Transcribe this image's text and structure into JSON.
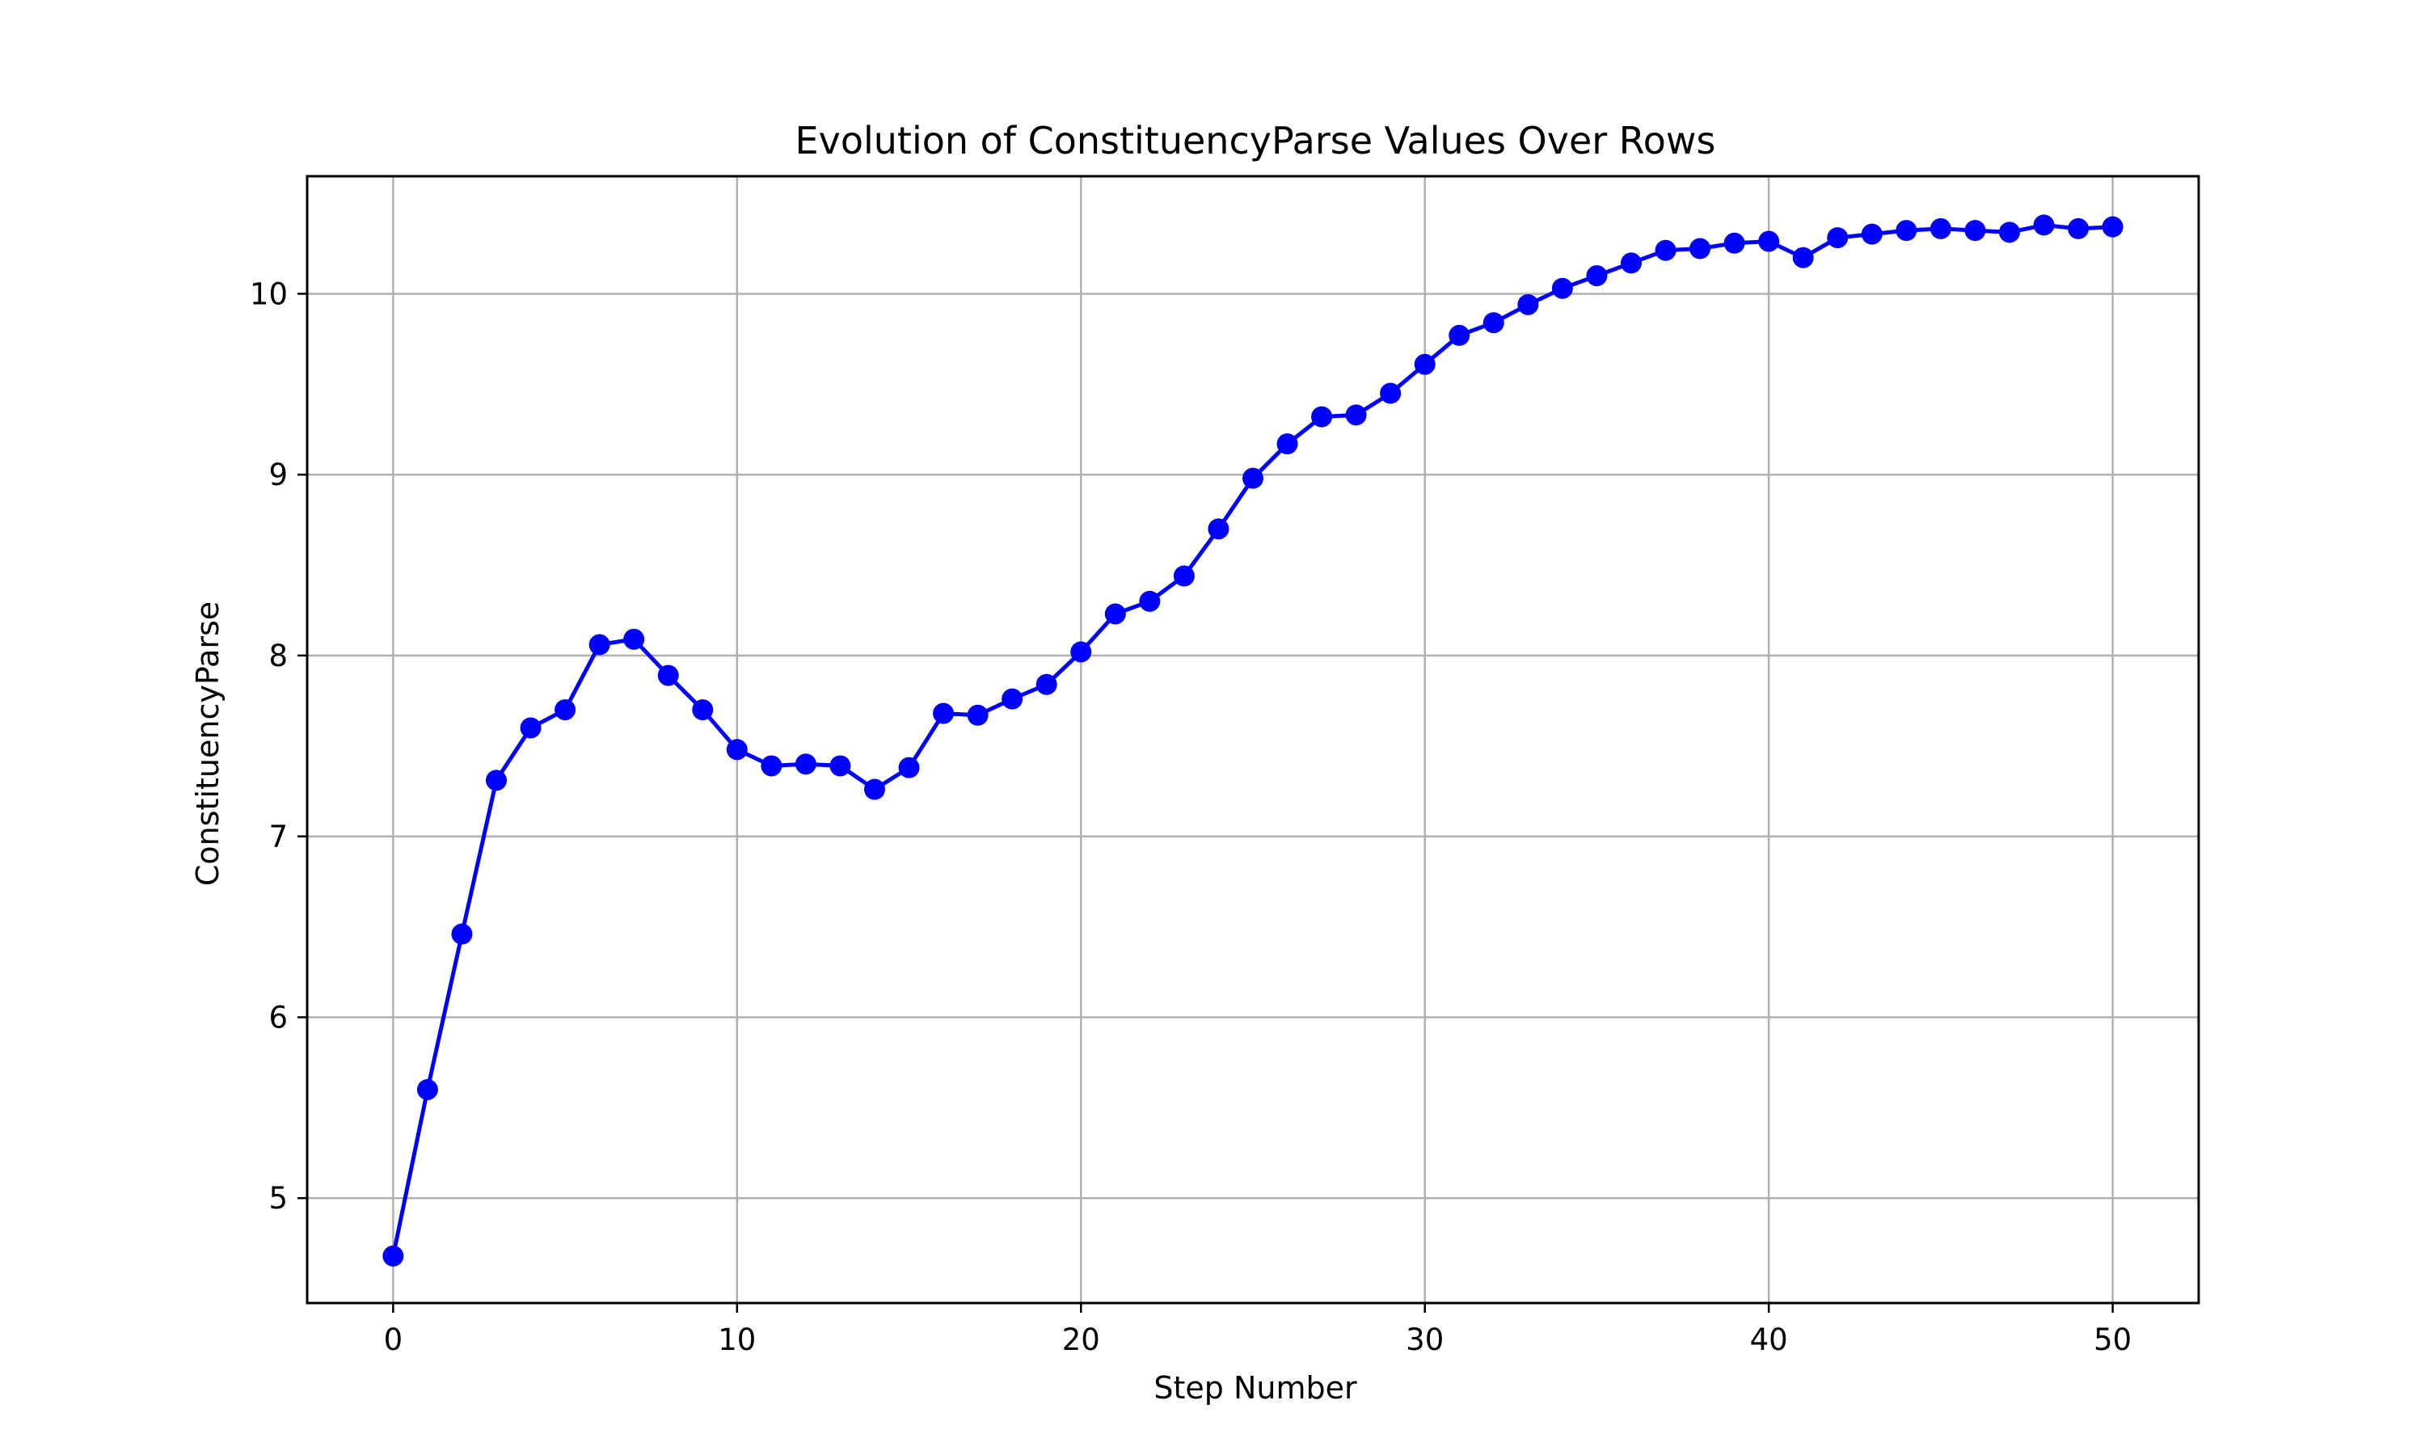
{
  "chart_data": {
    "type": "line",
    "title": "Evolution of ConstituencyParse Values Over Rows",
    "xlabel": "Step Number",
    "ylabel": "ConstituencyParse",
    "xlim": [
      -2.5,
      52.5
    ],
    "ylim": [
      4.42,
      10.65
    ],
    "xticks": [
      0,
      10,
      20,
      30,
      40,
      50
    ],
    "yticks": [
      5,
      6,
      7,
      8,
      9,
      10
    ],
    "grid": true,
    "line_color": "#0000ff",
    "marker": "circle",
    "series": [
      {
        "x": [
          0,
          1,
          2,
          3,
          4,
          5,
          6,
          7,
          8,
          9,
          10,
          11,
          12,
          13,
          14,
          15,
          16,
          17,
          18,
          19,
          20,
          21,
          22,
          23,
          24,
          25,
          26,
          27,
          28,
          29,
          30,
          31,
          32,
          33,
          34,
          35,
          36,
          37,
          38,
          39,
          40,
          41,
          42,
          43,
          44,
          45,
          46,
          47,
          48,
          49,
          50
        ],
        "values": [
          4.68,
          5.6,
          6.46,
          7.31,
          7.6,
          7.7,
          8.06,
          8.09,
          7.89,
          7.7,
          7.48,
          7.39,
          7.4,
          7.39,
          7.26,
          7.38,
          7.68,
          7.67,
          7.76,
          7.84,
          8.02,
          8.23,
          8.3,
          8.44,
          8.7,
          8.98,
          9.17,
          9.32,
          9.33,
          9.45,
          9.61,
          9.77,
          9.84,
          9.94,
          10.03,
          10.1,
          10.17,
          10.24,
          10.25,
          10.28,
          10.29,
          10.2,
          10.31,
          10.33,
          10.35,
          10.36,
          10.35,
          10.34,
          10.38,
          10.36,
          10.37
        ]
      }
    ]
  }
}
